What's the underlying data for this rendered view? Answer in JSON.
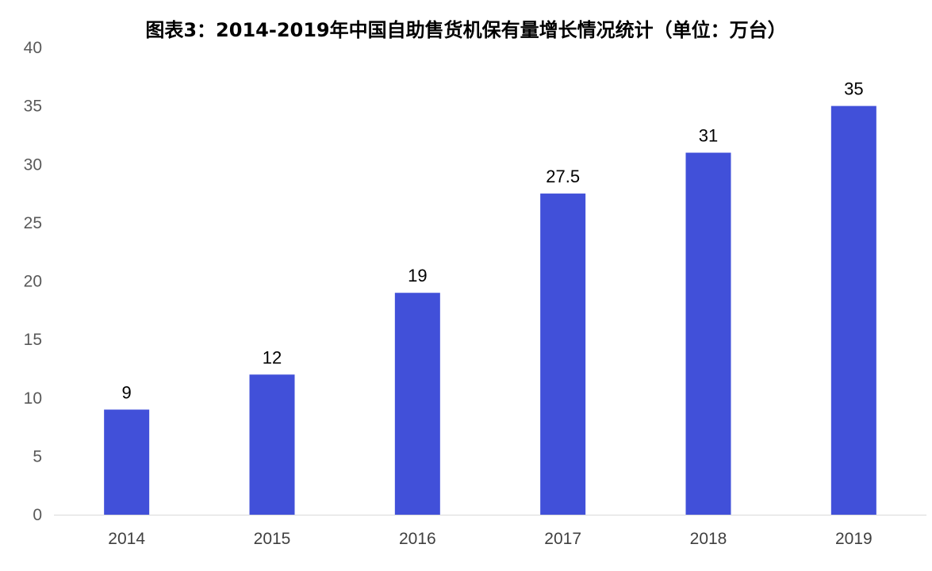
{
  "chart_data": {
    "type": "bar",
    "title": "图表3：2014-2019年中国自助售货机保有量增长情况统计（单位：万台）",
    "categories": [
      "2014",
      "2015",
      "2016",
      "2017",
      "2018",
      "2019"
    ],
    "values": [
      9,
      12,
      19,
      27.5,
      31,
      35
    ],
    "data_labels": [
      "9",
      "12",
      "19",
      "27.5",
      "31",
      "35"
    ],
    "yticks": [
      "0",
      "5",
      "10",
      "15",
      "20",
      "25",
      "30",
      "35",
      "40"
    ],
    "ylim": [
      0,
      40
    ],
    "xlabel": "",
    "ylabel": "",
    "grid": false,
    "legend": "none",
    "bar_color": "#4150D9",
    "axis_color": "#D9D9D9"
  }
}
